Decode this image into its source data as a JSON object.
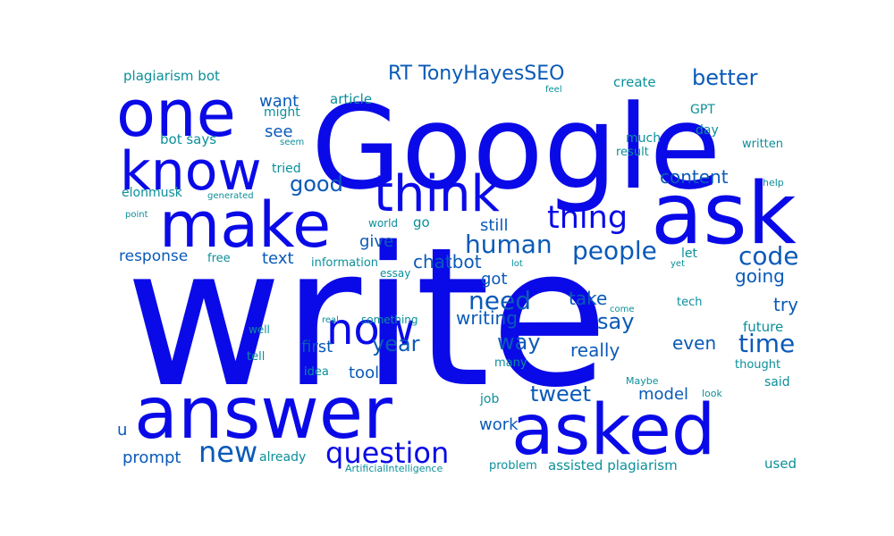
{
  "palette": {
    "blue": "#0a0ae8",
    "mid": "#0a5ab8",
    "teal": "#0b8f9a"
  },
  "words": [
    {
      "text": "write",
      "tone": "blue"
    },
    {
      "text": "Google",
      "tone": "blue"
    },
    {
      "text": "answer",
      "tone": "blue"
    },
    {
      "text": "ask",
      "tone": "blue"
    },
    {
      "text": "asked",
      "tone": "blue"
    },
    {
      "text": "make",
      "tone": "blue"
    },
    {
      "text": "one",
      "tone": "blue"
    },
    {
      "text": "know",
      "tone": "blue"
    },
    {
      "text": "think",
      "tone": "blue"
    },
    {
      "text": "now",
      "tone": "blue"
    },
    {
      "text": "question",
      "tone": "blue"
    },
    {
      "text": "thing",
      "tone": "blue"
    },
    {
      "text": "human",
      "tone": "mid"
    },
    {
      "text": "people",
      "tone": "mid"
    },
    {
      "text": "need",
      "tone": "mid"
    },
    {
      "text": "new",
      "tone": "mid"
    },
    {
      "text": "time",
      "tone": "mid"
    },
    {
      "text": "code",
      "tone": "mid"
    },
    {
      "text": "better",
      "tone": "mid"
    },
    {
      "text": "RT TonyHayesSEO",
      "tone": "mid"
    },
    {
      "text": "good",
      "tone": "mid"
    },
    {
      "text": "way",
      "tone": "mid"
    },
    {
      "text": "tweet",
      "tone": "mid"
    },
    {
      "text": "say",
      "tone": "mid"
    },
    {
      "text": "year",
      "tone": "mid"
    },
    {
      "text": "content",
      "tone": "mid"
    },
    {
      "text": "going",
      "tone": "mid"
    },
    {
      "text": "chatbot",
      "tone": "mid"
    },
    {
      "text": "writing",
      "tone": "mid"
    },
    {
      "text": "take",
      "tone": "mid"
    },
    {
      "text": "try",
      "tone": "mid"
    },
    {
      "text": "really",
      "tone": "mid"
    },
    {
      "text": "even",
      "tone": "mid"
    },
    {
      "text": "model",
      "tone": "mid"
    },
    {
      "text": "work",
      "tone": "mid"
    },
    {
      "text": "see",
      "tone": "mid"
    },
    {
      "text": "give",
      "tone": "mid"
    },
    {
      "text": "still",
      "tone": "mid"
    },
    {
      "text": "got",
      "tone": "mid"
    },
    {
      "text": "first",
      "tone": "mid"
    },
    {
      "text": "tool",
      "tone": "mid"
    },
    {
      "text": "text",
      "tone": "mid"
    },
    {
      "text": "response",
      "tone": "mid"
    },
    {
      "text": "prompt",
      "tone": "mid"
    },
    {
      "text": "u",
      "tone": "mid"
    },
    {
      "text": "want",
      "tone": "mid"
    },
    {
      "text": "plagiarism bot",
      "tone": "teal"
    },
    {
      "text": "assisted plagiarism",
      "tone": "teal"
    },
    {
      "text": "future",
      "tone": "teal"
    },
    {
      "text": "bot says",
      "tone": "teal"
    },
    {
      "text": "might",
      "tone": "teal"
    },
    {
      "text": "article",
      "tone": "teal"
    },
    {
      "text": "create",
      "tone": "teal"
    },
    {
      "text": "GPT",
      "tone": "teal"
    },
    {
      "text": "day",
      "tone": "teal"
    },
    {
      "text": "much",
      "tone": "teal"
    },
    {
      "text": "result",
      "tone": "teal"
    },
    {
      "text": "written",
      "tone": "teal"
    },
    {
      "text": "tried",
      "tone": "teal"
    },
    {
      "text": "elonmusk",
      "tone": "teal"
    },
    {
      "text": "information",
      "tone": "teal"
    },
    {
      "text": "essay",
      "tone": "teal"
    },
    {
      "text": "go",
      "tone": "teal"
    },
    {
      "text": "world",
      "tone": "teal"
    },
    {
      "text": "let",
      "tone": "teal"
    },
    {
      "text": "free",
      "tone": "teal"
    },
    {
      "text": "something",
      "tone": "teal"
    },
    {
      "text": "real",
      "tone": "teal"
    },
    {
      "text": "tech",
      "tone": "teal"
    },
    {
      "text": "come",
      "tone": "teal"
    },
    {
      "text": "well",
      "tone": "teal"
    },
    {
      "text": "tell",
      "tone": "teal"
    },
    {
      "text": "idea",
      "tone": "teal"
    },
    {
      "text": "many",
      "tone": "teal"
    },
    {
      "text": "thought",
      "tone": "teal"
    },
    {
      "text": "said",
      "tone": "teal"
    },
    {
      "text": "job",
      "tone": "teal"
    },
    {
      "text": "Maybe",
      "tone": "teal"
    },
    {
      "text": "look",
      "tone": "teal"
    },
    {
      "text": "already",
      "tone": "teal"
    },
    {
      "text": "used",
      "tone": "teal"
    },
    {
      "text": "problem",
      "tone": "teal"
    },
    {
      "text": "ArtificialIntelligence",
      "tone": "teal"
    },
    {
      "text": "feel",
      "tone": "teal"
    },
    {
      "text": "seem",
      "tone": "teal"
    },
    {
      "text": "generated",
      "tone": "teal"
    },
    {
      "text": "help",
      "tone": "teal"
    },
    {
      "text": "point",
      "tone": "teal"
    },
    {
      "text": "lot",
      "tone": "teal"
    },
    {
      "text": "yet",
      "tone": "teal"
    }
  ]
}
